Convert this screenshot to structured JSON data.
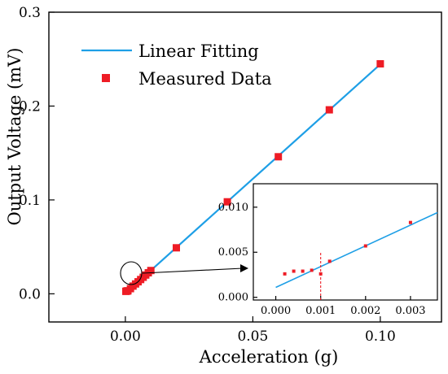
{
  "chart_data": [
    {
      "type": "scatter",
      "title": "",
      "xlabel": "Acceleration (g)",
      "ylabel": "Output Voltage (mV)",
      "xlim": [
        -0.03,
        0.124
      ],
      "ylim": [
        -0.03,
        0.3
      ],
      "x_ticks": [
        0.0,
        0.05,
        0.1
      ],
      "x_tick_labels": [
        "0.00",
        "0.05",
        "0.10"
      ],
      "y_ticks": [
        0.0,
        0.1,
        0.2,
        0.3
      ],
      "y_tick_labels": [
        "0.0",
        "0.1",
        "0.2",
        "0.3"
      ],
      "grid": false,
      "legend": {
        "position": "top-left",
        "entries": [
          "Linear Fitting",
          "Measured Data"
        ]
      },
      "series": [
        {
          "name": "Linear Fitting",
          "type": "line",
          "color": "#1E9FE6",
          "x": [
            0.0,
            0.1
          ],
          "y": [
            0.0005,
            0.2445
          ]
        },
        {
          "name": "Measured Data",
          "type": "scatter",
          "marker": "square",
          "color": "#EE1C25",
          "x": [
            0.0002,
            0.0004,
            0.0006,
            0.0008,
            0.001,
            0.002,
            0.003,
            0.004,
            0.005,
            0.006,
            0.007,
            0.008,
            0.009,
            0.01,
            0.02,
            0.04,
            0.06,
            0.08,
            0.1
          ],
          "y": [
            0.0026,
            0.0028,
            0.003,
            0.003,
            0.0032,
            0.0055,
            0.0082,
            0.0105,
            0.0128,
            0.0152,
            0.0176,
            0.02,
            0.0224,
            0.0248,
            0.049,
            0.098,
            0.146,
            0.196,
            0.245
          ]
        }
      ]
    },
    {
      "type": "scatter",
      "title": "",
      "xlabel": "",
      "ylabel": "",
      "xlim": [
        -0.0005,
        0.0036
      ],
      "ylim": [
        -0.0003,
        0.0126
      ],
      "x_ticks": [
        0.0,
        0.001,
        0.002,
        0.003
      ],
      "x_tick_labels": [
        "0.000",
        "0.001",
        "0.002",
        "0.003"
      ],
      "y_ticks": [
        0.0,
        0.005,
        0.01
      ],
      "y_tick_labels": [
        "0.000",
        "0.005",
        "0.010"
      ],
      "grid": false,
      "marker_x": 0.001,
      "series": [
        {
          "name": "Linear Fitting",
          "type": "line",
          "color": "#1E9FE6",
          "x": [
            0.0,
            0.0036
          ],
          "y": [
            0.0011,
            0.0094
          ]
        },
        {
          "name": "Measured Data",
          "type": "scatter",
          "marker": "square",
          "color": "#EE1C25",
          "x": [
            0.0002,
            0.0004,
            0.0006,
            0.0008,
            0.001,
            0.0012,
            0.002,
            0.003
          ],
          "y": [
            0.0026,
            0.0029,
            0.0029,
            0.003,
            0.0026,
            0.004,
            0.0057,
            0.0083
          ]
        }
      ]
    }
  ]
}
